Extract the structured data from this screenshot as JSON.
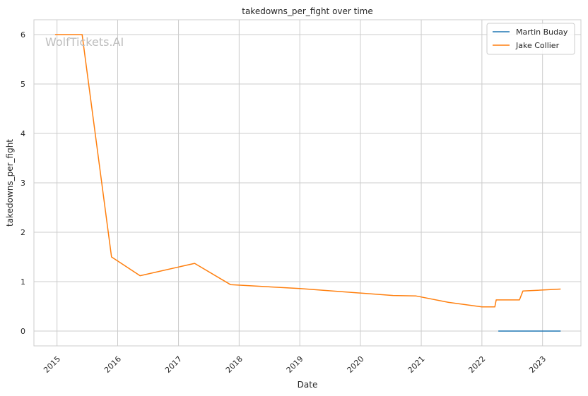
{
  "chart_data": {
    "type": "line",
    "title": "takedowns_per_fight over time",
    "xlabel": "Date",
    "ylabel": "takedowns_per_fight",
    "watermark": "WolfTickets.AI",
    "x_ticks": [
      "2015",
      "2016",
      "2017",
      "2018",
      "2019",
      "2020",
      "2021",
      "2022",
      "2023"
    ],
    "y_ticks": [
      "0",
      "1",
      "2",
      "3",
      "4",
      "5",
      "6"
    ],
    "xlim": [
      "2014-08-15",
      "2023-08-20"
    ],
    "ylim": [
      -0.3,
      6.3
    ],
    "grid": true,
    "legend_position": "top-right",
    "series": [
      {
        "name": "Martin Buday",
        "color": "#1f77b4",
        "points": [
          {
            "x": "2022-04-10",
            "y": 0
          },
          {
            "x": "2023-04-20",
            "y": 0
          }
        ]
      },
      {
        "name": "Jake Collier",
        "color": "#ff7f0e",
        "points": [
          {
            "x": "2014-12-20",
            "y": 6.0
          },
          {
            "x": "2015-06-01",
            "y": 6.0
          },
          {
            "x": "2015-11-25",
            "y": 1.5
          },
          {
            "x": "2016-05-15",
            "y": 1.12
          },
          {
            "x": "2017-04-08",
            "y": 1.37
          },
          {
            "x": "2017-11-10",
            "y": 0.94
          },
          {
            "x": "2019-01-01",
            "y": 0.86
          },
          {
            "x": "2020-07-15",
            "y": 0.72
          },
          {
            "x": "2020-12-01",
            "y": 0.71
          },
          {
            "x": "2021-06-15",
            "y": 0.58
          },
          {
            "x": "2022-01-01",
            "y": 0.49
          },
          {
            "x": "2022-03-20",
            "y": 0.49
          },
          {
            "x": "2022-03-28",
            "y": 0.63
          },
          {
            "x": "2022-08-15",
            "y": 0.63
          },
          {
            "x": "2022-09-05",
            "y": 0.81
          },
          {
            "x": "2023-04-20",
            "y": 0.85
          }
        ]
      }
    ]
  }
}
